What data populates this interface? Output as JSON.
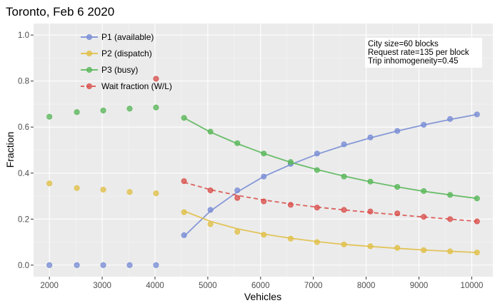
{
  "chart_data": {
    "type": "line",
    "title": "Toronto, Feb 6 2020",
    "xlabel": "Vehicles",
    "ylabel": "Fraction",
    "xlim": [
      1700,
      10400
    ],
    "ylim": [
      -0.05,
      1.05
    ],
    "x_ticks": [
      2000,
      3000,
      4000,
      5000,
      6000,
      7000,
      8000,
      9000,
      10000
    ],
    "y_ticks": [
      0.0,
      0.2,
      0.4,
      0.6,
      0.8,
      1.0
    ],
    "x_tick_labels": [
      "2000",
      "3000",
      "4000",
      "5000",
      "6000",
      "7000",
      "8000",
      "9000",
      "10000"
    ],
    "y_tick_labels": [
      "0.0",
      "0.2",
      "0.4",
      "0.6",
      "0.8",
      "1.0"
    ],
    "grid": true,
    "legend_position": "top-left",
    "x": [
      2000,
      2520,
      3020,
      3520,
      4020,
      4550,
      5050,
      5560,
      6060,
      6570,
      7070,
      7580,
      8080,
      8590,
      9090,
      9590,
      10100
    ],
    "fit_start_index": 5,
    "series": [
      {
        "name": "P1 (available)",
        "color": "#7b8fd6",
        "dashed": false,
        "values": [
          0.0,
          0.0,
          0.0,
          0.0,
          0.0,
          0.13,
          0.24,
          0.325,
          0.385,
          0.44,
          0.485,
          0.525,
          0.555,
          0.583,
          0.61,
          0.635,
          0.655
        ],
        "fit": [
          0.125,
          0.235,
          0.318,
          0.385,
          0.437,
          0.482,
          0.52,
          0.553,
          0.583,
          0.609,
          0.633,
          0.655
        ]
      },
      {
        "name": "P2 (dispatch)",
        "color": "#e1c04a",
        "dashed": false,
        "values": [
          0.355,
          0.335,
          0.328,
          0.318,
          0.312,
          0.23,
          0.178,
          0.145,
          0.132,
          0.115,
          0.1,
          0.09,
          0.082,
          0.075,
          0.065,
          0.06,
          0.055
        ],
        "fit": [
          0.235,
          0.19,
          0.158,
          0.135,
          0.117,
          0.102,
          0.09,
          0.081,
          0.073,
          0.066,
          0.06,
          0.055
        ]
      },
      {
        "name": "P3 (busy)",
        "color": "#5cb85c",
        "dashed": false,
        "values": [
          0.645,
          0.665,
          0.672,
          0.68,
          0.685,
          0.64,
          0.58,
          0.53,
          0.485,
          0.448,
          0.413,
          0.385,
          0.363,
          0.34,
          0.322,
          0.305,
          0.29
        ],
        "fit": [
          0.64,
          0.578,
          0.528,
          0.485,
          0.447,
          0.415,
          0.387,
          0.362,
          0.34,
          0.321,
          0.305,
          0.29
        ]
      },
      {
        "name": "Wait fraction (W/L)",
        "color": "#d9534f",
        "dashed": true,
        "values": [
          null,
          null,
          null,
          null,
          0.81,
          0.365,
          0.325,
          0.292,
          0.277,
          0.262,
          0.25,
          0.24,
          0.233,
          0.225,
          0.21,
          0.2,
          0.19
        ],
        "fit": [
          0.36,
          0.328,
          0.303,
          0.283,
          0.266,
          0.252,
          0.24,
          0.229,
          0.219,
          0.209,
          0.2,
          0.19
        ]
      }
    ],
    "annotation": [
      "City size=60 blocks",
      "Request rate=135 per block",
      "Trip inhomogeneity=0.45"
    ]
  }
}
